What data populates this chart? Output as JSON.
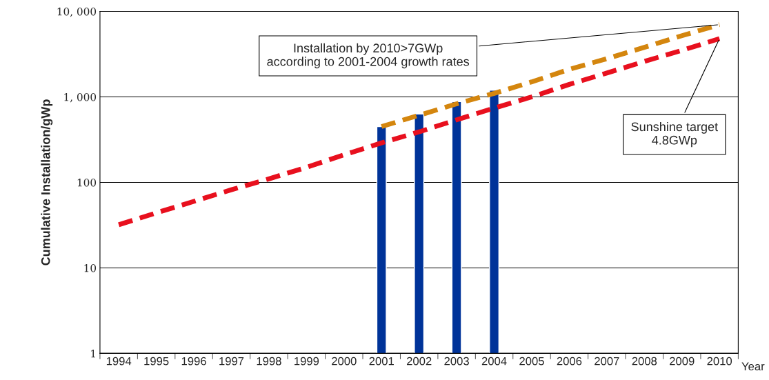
{
  "chart_data": {
    "type": "bar",
    "ylabel": "Cumulative Installation/gWp",
    "xlabel": "Year",
    "categories": [
      "1994",
      "1995",
      "1996",
      "1997",
      "1998",
      "1999",
      "2000",
      "2001",
      "2002",
      "2003",
      "2004",
      "2005",
      "2006",
      "2007",
      "2008",
      "2009",
      "2010"
    ],
    "series": [
      {
        "color": "#003399",
        "values": [
          null,
          null,
          null,
          null,
          null,
          null,
          null,
          450,
          630,
          880,
          1200,
          null,
          null,
          null,
          null,
          null,
          null
        ]
      },
      {
        "type": "line",
        "color": "#e8101e",
        "line_style": "dashed",
        "values": [
          32,
          44,
          60,
          82,
          110,
          150,
          210,
          290,
          390,
          540,
          740,
          1000,
          1400,
          1900,
          2600,
          3500,
          4800
        ]
      },
      {
        "type": "line",
        "color": "#d4860e",
        "line_style": "dashed",
        "values": [
          null,
          null,
          null,
          null,
          null,
          null,
          null,
          450,
          610,
          830,
          1100,
          1500,
          2100,
          2800,
          3800,
          5200,
          7000
        ]
      }
    ],
    "log": "y",
    "ylim": [
      1,
      10000
    ],
    "yticks": [
      1,
      10,
      100,
      {
        "value": 1000,
        "label": "1, 000"
      },
      {
        "value": 10000,
        "label": "10, 000"
      }
    ],
    "grid": "y",
    "legend": false,
    "annotations": [
      {
        "text": "Installation by 2010>7GWp\naccording to 2001-2004 growth rates",
        "x": "2010",
        "y": 7000
      },
      {
        "text": "Sunshine target\n4.8GWp",
        "x": "2010",
        "y": 4800
      }
    ]
  }
}
